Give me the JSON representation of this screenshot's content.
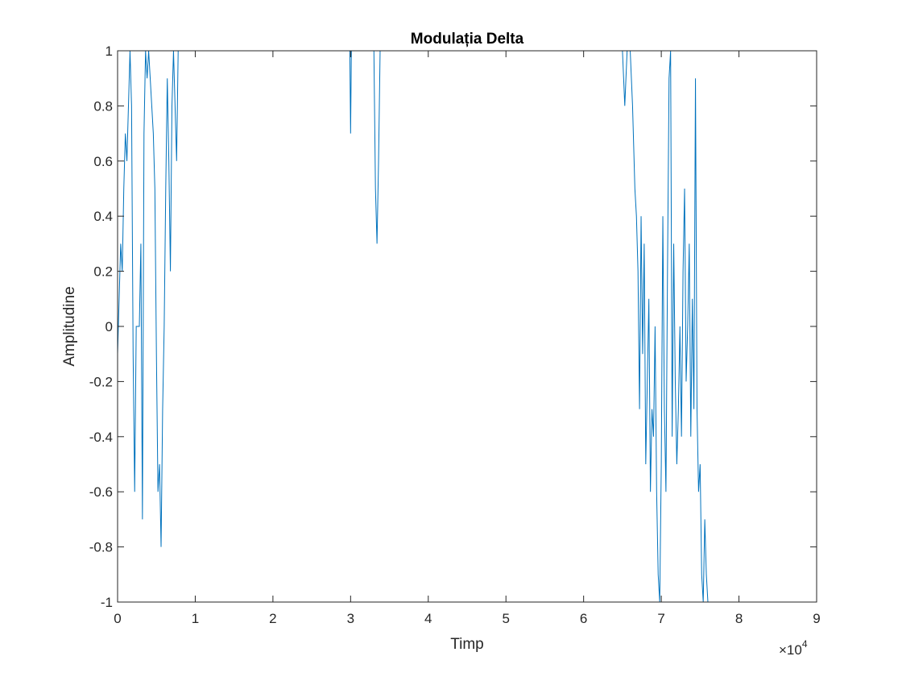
{
  "chart_data": {
    "type": "line",
    "title": "Modulația Delta",
    "xlabel": "Timp",
    "ylabel": "Amplitudine",
    "x_exponent_label": "×10",
    "x_exponent_power": "4",
    "xlim": [
      0,
      90000
    ],
    "ylim": [
      -1,
      1
    ],
    "x_ticks": [
      0,
      10000,
      20000,
      30000,
      40000,
      50000,
      60000,
      70000,
      80000,
      90000
    ],
    "x_tick_labels": [
      "0",
      "1",
      "2",
      "3",
      "4",
      "5",
      "6",
      "7",
      "8",
      "9"
    ],
    "y_ticks": [
      -1,
      -0.8,
      -0.6,
      -0.4,
      -0.2,
      0,
      0.2,
      0.4,
      0.6,
      0.8,
      1
    ],
    "y_tick_labels": [
      "-1",
      "-0.8",
      "-0.6",
      "-0.4",
      "-0.2",
      "0",
      "0.2",
      "0.4",
      "0.6",
      "0.8",
      "1"
    ],
    "grid": false,
    "series": [
      {
        "color": "#0072BD",
        "x": [
          0,
          200,
          400,
          600,
          800,
          1000,
          1200,
          1400,
          1600,
          1800,
          2000,
          2200,
          2400,
          2600,
          2800,
          3000,
          3200,
          3400,
          3600,
          3800,
          4000,
          4200,
          4400,
          4600,
          4800,
          5000,
          5200,
          5400,
          5600,
          5800,
          6000,
          6200,
          6400,
          6600,
          6800,
          7000,
          7200,
          7400,
          7600,
          7800,
          8000,
          10000,
          20000,
          29900,
          30000,
          30100,
          30300,
          33000,
          33200,
          33400,
          33600,
          33800,
          34000,
          35000,
          50000,
          65000,
          65300,
          65600,
          66000,
          66300,
          66600,
          66800,
          67000,
          67200,
          67400,
          67600,
          67800,
          68000,
          68200,
          68400,
          68600,
          68800,
          69000,
          69200,
          69400,
          69600,
          69800,
          70000,
          70200,
          70400,
          70600,
          70800,
          71000,
          71200,
          71400,
          71600,
          71800,
          72000,
          72200,
          72400,
          72600,
          72800,
          73000,
          73200,
          73400,
          73600,
          73800,
          74000,
          74200,
          74400,
          74600,
          74800,
          75000,
          75200,
          75400,
          75600,
          75800,
          76000,
          76200,
          76400,
          77000,
          80000,
          90000
        ],
        "y": [
          -0.1,
          0.1,
          0.3,
          0.2,
          0.5,
          0.7,
          0.6,
          0.8,
          1.0,
          0.8,
          -0.1,
          -0.6,
          0.0,
          0.0,
          0.0,
          0.3,
          -0.7,
          0.7,
          1.0,
          0.9,
          1.0,
          0.9,
          0.8,
          0.7,
          0.5,
          -0.1,
          -0.6,
          -0.5,
          -0.8,
          -0.3,
          0.0,
          0.5,
          0.9,
          0.6,
          0.2,
          0.8,
          1.0,
          0.8,
          0.6,
          1.0,
          1.0,
          1.0,
          1.0,
          1.0,
          0.7,
          1.0,
          1.0,
          1.0,
          0.5,
          0.3,
          0.6,
          1.0,
          1.0,
          1.0,
          1.0,
          1.0,
          0.8,
          1.0,
          1.0,
          0.8,
          0.5,
          0.4,
          0.2,
          -0.3,
          0.4,
          -0.1,
          0.3,
          -0.5,
          -0.2,
          0.1,
          -0.6,
          -0.3,
          -0.4,
          0.0,
          -0.6,
          -0.9,
          -1.0,
          -0.5,
          0.4,
          -0.3,
          -0.6,
          0.2,
          0.9,
          1.0,
          -0.4,
          0.3,
          -0.2,
          -0.5,
          -0.3,
          0.0,
          -0.4,
          0.2,
          0.5,
          -0.2,
          0.0,
          0.3,
          -0.4,
          0.1,
          -0.3,
          0.9,
          -0.3,
          -0.6,
          -0.5,
          -0.9,
          -1.0,
          -0.7,
          -0.9,
          -1.0,
          -1.0,
          -1.0,
          -1.0,
          -1.0,
          -1.0
        ]
      }
    ]
  }
}
